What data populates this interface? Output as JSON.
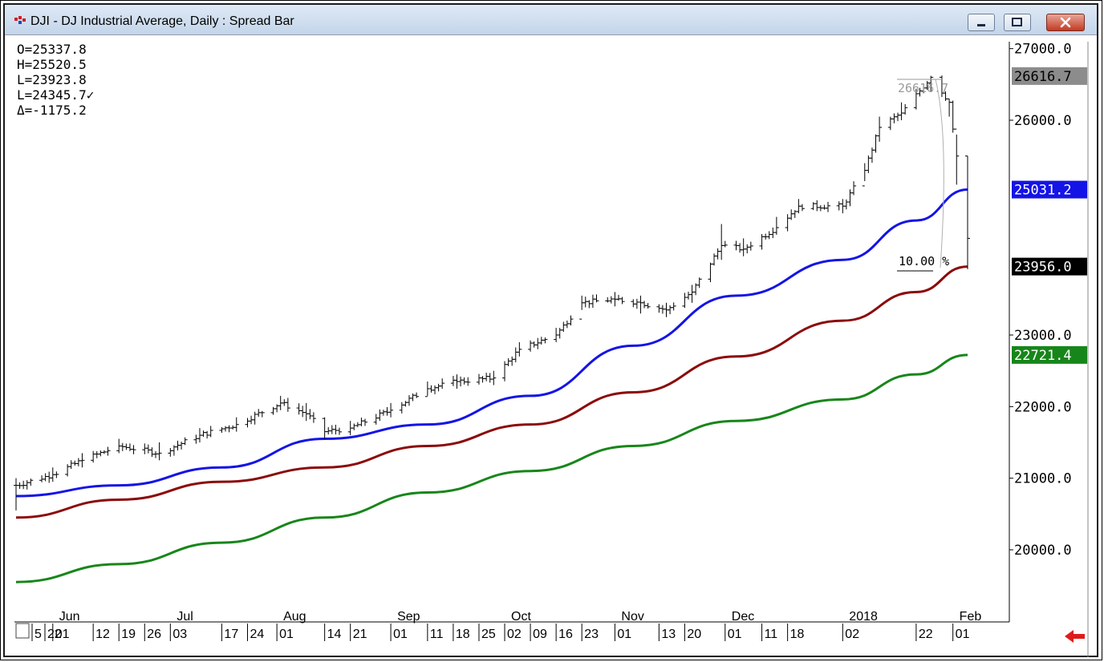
{
  "window": {
    "title": "DJI - DJ Industrial Average, Daily : Spread Bar",
    "controls": [
      "minimize",
      "maximize",
      "close"
    ]
  },
  "ohlc_readout": {
    "open": "O=25337.8",
    "high": "H=25520.5",
    "low": "L=23923.8",
    "last": "L=24345.7✓",
    "delta": "Δ=-1175.2"
  },
  "annotations": {
    "peak_value": "26616.7",
    "drop_percent": "10.00 %"
  },
  "price_labels": [
    {
      "text": "26616.7",
      "value": 26616.7,
      "bg": "#8c8c8c",
      "fg": "#000000"
    },
    {
      "text": "25031.2",
      "value": 25031.2,
      "bg": "#1414e6",
      "fg": "#ffffff"
    },
    {
      "text": "23956.0",
      "value": 23956.0,
      "bg": "#000000",
      "fg": "#ffffff"
    },
    {
      "text": "22721.4",
      "value": 22721.4,
      "bg": "#17861a",
      "fg": "#ffffff"
    }
  ],
  "chart_data": {
    "type": "line",
    "title": "DJI - DJ Industrial Average, Daily : Spread Bar",
    "xlabel": "",
    "ylabel": "",
    "ylim": [
      19000,
      27200
    ],
    "y_ticks": [
      "27000.0",
      "26000.0",
      "23000.0",
      "22000.0",
      "21000.0",
      "20000.0"
    ],
    "y_tick_values": [
      27000,
      26000,
      23000,
      22000,
      21000,
      20000
    ],
    "month_labels": [
      "Jun",
      "Jul",
      "Aug",
      "Sep",
      "Oct",
      "Nov",
      "Dec",
      "2018",
      "Feb"
    ],
    "day_labels": [
      "5",
      "22",
      "01",
      "12",
      "19",
      "26",
      "03",
      "17",
      "24",
      "01",
      "14",
      "21",
      "01",
      "11",
      "18",
      "25",
      "02",
      "09",
      "16",
      "23",
      "01",
      "13",
      "20",
      "01",
      "11",
      "18",
      "02",
      "22",
      "01"
    ],
    "grid": false,
    "legend": "none",
    "price_series": {
      "name": "",
      "x": [
        "2017-05-22",
        "2017-06-01",
        "2017-06-09",
        "2017-06-19",
        "2017-06-30",
        "2017-07-11",
        "2017-07-21",
        "2017-08-02",
        "2017-08-09",
        "2017-08-14",
        "2017-08-21",
        "2017-09-01",
        "2017-09-11",
        "2017-09-19",
        "2017-09-29",
        "2017-10-06",
        "2017-10-16",
        "2017-10-23",
        "2017-11-01",
        "2017-11-08",
        "2017-11-15",
        "2017-11-22",
        "2017-11-30",
        "2017-12-06",
        "2017-12-15",
        "2017-12-21",
        "2018-01-02",
        "2018-01-08",
        "2018-01-12",
        "2018-01-18",
        "2018-01-26",
        "2018-01-31",
        "2018-02-02",
        "2018-02-05"
      ],
      "close": [
        20900,
        21050,
        21250,
        21450,
        21350,
        21600,
        21750,
        22050,
        21900,
        21650,
        21700,
        21950,
        22250,
        22350,
        22400,
        22800,
        23000,
        23450,
        23500,
        23450,
        23350,
        23600,
        24250,
        24200,
        24500,
        24800,
        24800,
        25300,
        25900,
        26100,
        26600,
        26250,
        25500,
        24350
      ],
      "high": [
        21000,
        21150,
        21350,
        21550,
        21500,
        21700,
        21850,
        22150,
        22050,
        21850,
        21800,
        22050,
        22350,
        22450,
        22500,
        22900,
        23100,
        23550,
        23600,
        23550,
        23450,
        23700,
        24550,
        24350,
        24650,
        24900,
        24900,
        25400,
        26050,
        26250,
        26620,
        26300,
        25800,
        25500
      ],
      "low": [
        20550,
        20950,
        21150,
        21350,
        21250,
        21500,
        21650,
        21950,
        21800,
        21550,
        21600,
        21850,
        22150,
        22250,
        22300,
        22700,
        22900,
        23350,
        23400,
        23300,
        23250,
        23450,
        24050,
        24100,
        24400,
        24700,
        24700,
        25150,
        25700,
        26000,
        26400,
        26050,
        25100,
        23920
      ]
    },
    "series": [
      {
        "name": "",
        "color": "#1414e6",
        "x": [
          "2017-05-22",
          "2017-06-19",
          "2017-07-17",
          "2017-08-14",
          "2017-09-11",
          "2017-10-09",
          "2017-11-06",
          "2017-12-04",
          "2018-01-02",
          "2018-01-22",
          "2018-02-05"
        ],
        "values": [
          20750,
          20900,
          21150,
          21550,
          21750,
          22150,
          22850,
          23550,
          24050,
          24600,
          25031.2
        ]
      },
      {
        "name": "",
        "color": "#8b0a0a",
        "x": [
          "2017-05-22",
          "2017-06-19",
          "2017-07-17",
          "2017-08-14",
          "2017-09-11",
          "2017-10-09",
          "2017-11-06",
          "2017-12-04",
          "2018-01-02",
          "2018-01-22",
          "2018-02-05"
        ],
        "values": [
          20450,
          20700,
          20950,
          21150,
          21450,
          21750,
          22200,
          22700,
          23200,
          23600,
          23956.0
        ]
      },
      {
        "name": "",
        "color": "#17861a",
        "x": [
          "2017-05-22",
          "2017-06-19",
          "2017-07-17",
          "2017-08-14",
          "2017-09-11",
          "2017-10-09",
          "2017-11-06",
          "2017-12-04",
          "2018-01-02",
          "2018-01-22",
          "2018-02-05"
        ],
        "values": [
          19550,
          19800,
          20100,
          20450,
          20800,
          21100,
          21450,
          21800,
          22100,
          22450,
          22721.4
        ]
      }
    ]
  },
  "footer": {
    "back_arrow_color": "#e01b1b"
  }
}
